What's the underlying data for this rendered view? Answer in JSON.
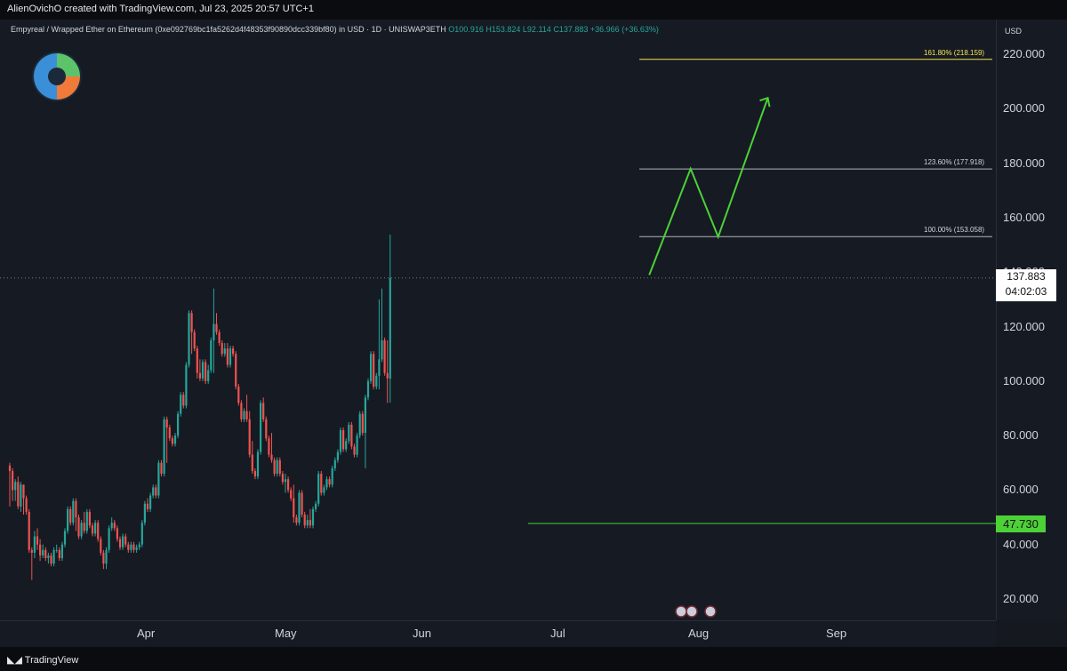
{
  "header": {
    "credit": "AlienOvichO created with TradingView.com, Jul 23, 2025 20:57 UTC+1",
    "symbol": "Empyreal / Wrapped Ether on Ethereum (0xe092769bc1fa5262d4f48353f90890dcc339bf80) in USD · 1D · UNISWAP3ETH",
    "ohlc": {
      "o": "O100.916",
      "h": "H153.824",
      "l": "L92.114",
      "c": "C137.883",
      "chg": "+36.966 (+36.63%)"
    },
    "currency": "USD"
  },
  "footer": {
    "brand": "TradingView"
  },
  "colors": {
    "up": "#26a69a",
    "down": "#ef5350",
    "annotation": "#4cd137",
    "fib161": "#f7e64f",
    "fib_other": "#b2b5be",
    "background": "#161a23"
  },
  "chart_data": {
    "type": "candlestick",
    "xlabel": "",
    "ylabel": "",
    "ylim": [
      15,
      228
    ],
    "y_ticks": [
      "20.000",
      "40.000",
      "60.000",
      "80.000",
      "100.000",
      "120.000",
      "140.000",
      "160.000",
      "180.000",
      "200.000",
      "220.000"
    ],
    "x_ticks": [
      "Apr",
      "May",
      "Jun",
      "Jul",
      "Aug",
      "Sep"
    ],
    "x_tick_index": [
      50,
      100,
      150,
      200,
      250,
      300
    ],
    "last_price": "137.883",
    "countdown": "04:02:03",
    "support": {
      "value": 47.73,
      "label": "47.730",
      "from_index": 188
    },
    "fib_levels": [
      {
        "label": "100.00% (153.058)",
        "value": 153.058
      },
      {
        "label": "123.60% (177.918)",
        "value": 177.918
      },
      {
        "label": "161.80% (218.159)",
        "value": 218.159
      }
    ],
    "projection": [
      [
        232,
        139
      ],
      [
        247,
        178
      ],
      [
        257,
        153
      ],
      [
        275,
        204
      ]
    ],
    "candles": [
      [
        69,
        67,
        54,
        70
      ],
      [
        67,
        60,
        56,
        68
      ],
      [
        60,
        63,
        56,
        64
      ],
      [
        63,
        54,
        53,
        65
      ],
      [
        54,
        62,
        52,
        63
      ],
      [
        62,
        57,
        51,
        62
      ],
      [
        57,
        52,
        51,
        58
      ],
      [
        52,
        38,
        37,
        53
      ],
      [
        38,
        37,
        27,
        39
      ],
      [
        37,
        43,
        35,
        45
      ],
      [
        43,
        40,
        38,
        46
      ],
      [
        40,
        36,
        34,
        42
      ],
      [
        36,
        38,
        35,
        40
      ],
      [
        38,
        35,
        34,
        39
      ],
      [
        35,
        36,
        33,
        37
      ],
      [
        36,
        33,
        32,
        37
      ],
      [
        33,
        38,
        32,
        39
      ],
      [
        38,
        38,
        37,
        40
      ],
      [
        38,
        35,
        34,
        39
      ],
      [
        35,
        40,
        34,
        41
      ],
      [
        40,
        45,
        39,
        46
      ],
      [
        45,
        53,
        44,
        54
      ],
      [
        53,
        48,
        47,
        54
      ],
      [
        48,
        56,
        47,
        57
      ],
      [
        56,
        50,
        45,
        57
      ],
      [
        50,
        43,
        42,
        51
      ],
      [
        43,
        48,
        42,
        49
      ],
      [
        48,
        45,
        44,
        52
      ],
      [
        45,
        52,
        44,
        53
      ],
      [
        52,
        47,
        46,
        53
      ],
      [
        47,
        44,
        43,
        48
      ],
      [
        44,
        48,
        43,
        49
      ],
      [
        48,
        42,
        41,
        49
      ],
      [
        42,
        37,
        36,
        43
      ],
      [
        37,
        33,
        31,
        38
      ],
      [
        33,
        38,
        31,
        39
      ],
      [
        38,
        46,
        37,
        47
      ],
      [
        46,
        48,
        45,
        50
      ],
      [
        48,
        46,
        45,
        49
      ],
      [
        46,
        42,
        41,
        47
      ],
      [
        42,
        39,
        38,
        43
      ],
      [
        39,
        43,
        38,
        44
      ],
      [
        43,
        40,
        39,
        44
      ],
      [
        40,
        38,
        37,
        41
      ],
      [
        38,
        40,
        37,
        41
      ],
      [
        40,
        38,
        37,
        41
      ],
      [
        38,
        39,
        37,
        40
      ],
      [
        39,
        40,
        38,
        41
      ],
      [
        40,
        48,
        39,
        49
      ],
      [
        48,
        55,
        47,
        56
      ],
      [
        55,
        53,
        52,
        57
      ],
      [
        53,
        58,
        52,
        59
      ],
      [
        58,
        61,
        57,
        62
      ],
      [
        61,
        58,
        57,
        62
      ],
      [
        58,
        70,
        57,
        71
      ],
      [
        70,
        66,
        65,
        71
      ],
      [
        66,
        86,
        65,
        87
      ],
      [
        86,
        83,
        70,
        87
      ],
      [
        83,
        79,
        78,
        84
      ],
      [
        79,
        77,
        76,
        80
      ],
      [
        77,
        80,
        76,
        81
      ],
      [
        80,
        88,
        79,
        89
      ],
      [
        88,
        95,
        87,
        96
      ],
      [
        95,
        91,
        90,
        96
      ],
      [
        91,
        106,
        90,
        107
      ],
      [
        106,
        125,
        105,
        126
      ],
      [
        125,
        118,
        110,
        126
      ],
      [
        118,
        112,
        111,
        119
      ],
      [
        112,
        103,
        101,
        113
      ],
      [
        103,
        101,
        100,
        108
      ],
      [
        101,
        107,
        100,
        108
      ],
      [
        107,
        100,
        99,
        108
      ],
      [
        100,
        104,
        99,
        106
      ],
      [
        104,
        115,
        103,
        116
      ],
      [
        115,
        121,
        103,
        134
      ],
      [
        121,
        118,
        117,
        125
      ],
      [
        118,
        114,
        113,
        119
      ],
      [
        114,
        110,
        109,
        115
      ],
      [
        110,
        112,
        109,
        114
      ],
      [
        112,
        106,
        105,
        114
      ],
      [
        106,
        112,
        105,
        113
      ],
      [
        112,
        110,
        109,
        113
      ],
      [
        110,
        98,
        97,
        111
      ],
      [
        98,
        92,
        91,
        99
      ],
      [
        92,
        86,
        85,
        93
      ],
      [
        86,
        89,
        85,
        90
      ],
      [
        89,
        86,
        85,
        95
      ],
      [
        86,
        73,
        72,
        89
      ],
      [
        73,
        67,
        66,
        78
      ],
      [
        67,
        65,
        64,
        68
      ],
      [
        65,
        74,
        64,
        75
      ],
      [
        74,
        92,
        73,
        93
      ],
      [
        92,
        86,
        85,
        94
      ],
      [
        86,
        79,
        78,
        87
      ],
      [
        79,
        73,
        72,
        80
      ],
      [
        73,
        71,
        70,
        81
      ],
      [
        71,
        66,
        65,
        72
      ],
      [
        66,
        71,
        65,
        72
      ],
      [
        71,
        66,
        65,
        72
      ],
      [
        66,
        63,
        62,
        67
      ],
      [
        63,
        64,
        59,
        66
      ],
      [
        64,
        60,
        59,
        65
      ],
      [
        60,
        57,
        56,
        61
      ],
      [
        57,
        50,
        48,
        62
      ],
      [
        50,
        48,
        47,
        51
      ],
      [
        48,
        59,
        47,
        60
      ],
      [
        59,
        51,
        50,
        60
      ],
      [
        51,
        47,
        46,
        52
      ],
      [
        47,
        49,
        46,
        51
      ],
      [
        49,
        47,
        46,
        53
      ],
      [
        47,
        53,
        46,
        54
      ],
      [
        53,
        55,
        52,
        56
      ],
      [
        55,
        66,
        54,
        67
      ],
      [
        66,
        59,
        58,
        67
      ],
      [
        59,
        61,
        58,
        62
      ],
      [
        61,
        64,
        60,
        65
      ],
      [
        64,
        62,
        61,
        65
      ],
      [
        62,
        68,
        61,
        69
      ],
      [
        68,
        71,
        67,
        72
      ],
      [
        71,
        74,
        70,
        75
      ],
      [
        74,
        82,
        73,
        83
      ],
      [
        82,
        75,
        74,
        83
      ],
      [
        75,
        78,
        74,
        79
      ],
      [
        78,
        84,
        77,
        85
      ],
      [
        84,
        76,
        75,
        85
      ],
      [
        76,
        73,
        72,
        77
      ],
      [
        73,
        80,
        72,
        81
      ],
      [
        80,
        88,
        79,
        89
      ],
      [
        88,
        81,
        80,
        89
      ],
      [
        81,
        94,
        68,
        95
      ],
      [
        94,
        100,
        93,
        101
      ],
      [
        100,
        110,
        99,
        111
      ],
      [
        110,
        98,
        97,
        111
      ],
      [
        98,
        102,
        97,
        103
      ],
      [
        102,
        108,
        97,
        130
      ],
      [
        108,
        115,
        107,
        134
      ],
      [
        115,
        103,
        102,
        116
      ],
      [
        103,
        101,
        92,
        115
      ],
      [
        101,
        137.883,
        92.114,
        153.824
      ]
    ],
    "events_markers": 3
  }
}
